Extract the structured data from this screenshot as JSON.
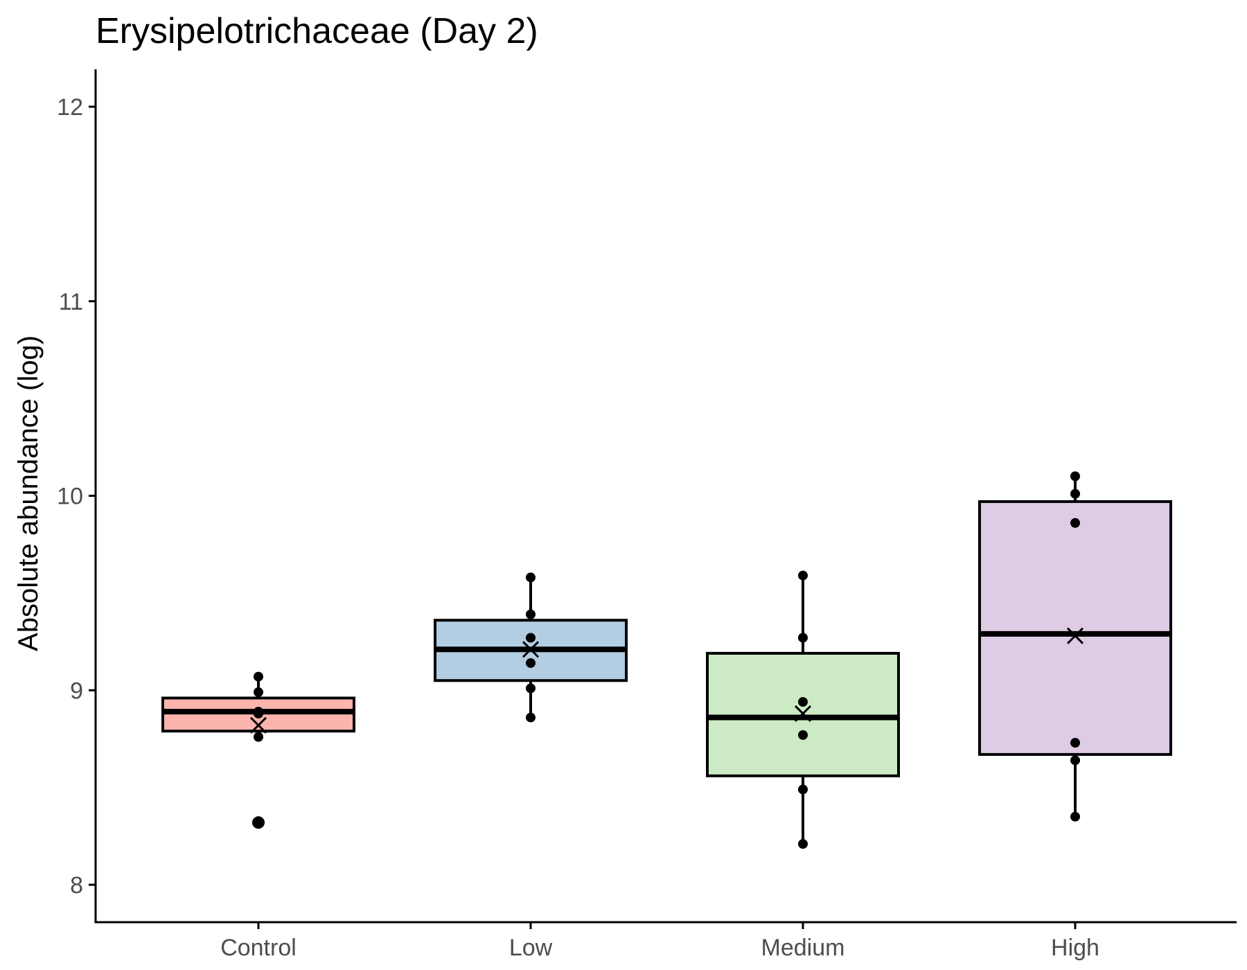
{
  "chart_data": {
    "type": "box",
    "title": "Erysipelotrichaceae (Day 2)",
    "xlabel": "",
    "ylabel": "Absolute abundance (log)",
    "ylim": [
      7.8,
      12.2
    ],
    "yticks": [
      8,
      9,
      10,
      11,
      12
    ],
    "categories": [
      "Control",
      "Low",
      "Medium",
      "High"
    ],
    "colors": [
      "#FBB4AE",
      "#B3CDE3",
      "#CCEBC5",
      "#DECBE4"
    ],
    "boxes": [
      {
        "category": "Control",
        "q1": 8.79,
        "median": 8.89,
        "q3": 8.96,
        "whisker_low": 8.76,
        "whisker_high": 9.07,
        "mean": 8.82,
        "outliers": [
          8.32
        ],
        "points": [
          9.07,
          8.99,
          8.89,
          8.88,
          8.76,
          8.32
        ]
      },
      {
        "category": "Low",
        "q1": 9.05,
        "median": 9.21,
        "q3": 9.36,
        "whisker_low": 8.86,
        "whisker_high": 9.58,
        "mean": 9.21,
        "outliers": [],
        "points": [
          9.58,
          9.39,
          9.27,
          9.14,
          9.01,
          8.86
        ]
      },
      {
        "category": "Medium",
        "q1": 8.56,
        "median": 8.86,
        "q3": 9.19,
        "whisker_low": 8.21,
        "whisker_high": 9.59,
        "mean": 8.88,
        "outliers": [],
        "points": [
          9.59,
          9.27,
          8.94,
          8.77,
          8.49,
          8.21
        ]
      },
      {
        "category": "High",
        "q1": 8.67,
        "median": 9.29,
        "q3": 9.97,
        "whisker_low": 8.35,
        "whisker_high": 10.1,
        "mean": 9.28,
        "outliers": [],
        "points": [
          10.1,
          10.01,
          9.86,
          8.73,
          8.64,
          8.35
        ]
      }
    ]
  }
}
